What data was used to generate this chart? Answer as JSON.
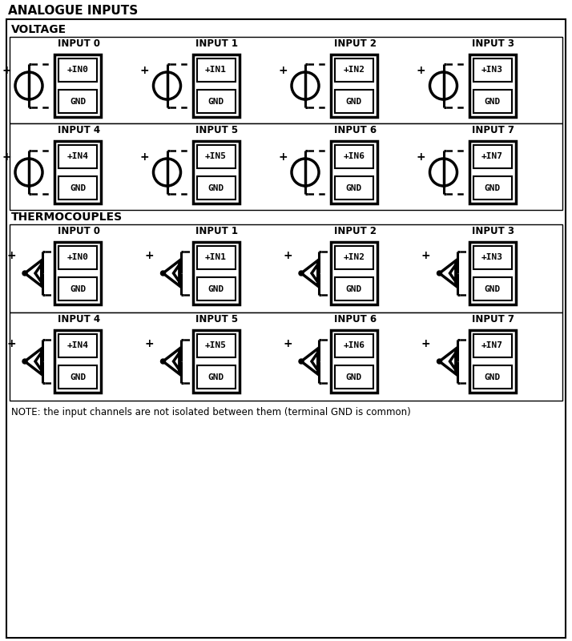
{
  "title": "ANALOGUE INPUTS",
  "voltage_label": "VOLTAGE",
  "thermocouple_label": "THERMOCOUPLES",
  "note": "NOTE: the input channels are not isolated between them (terminal GND is common)",
  "input_labels_row1": [
    "INPUT 0",
    "INPUT 1",
    "INPUT 2",
    "INPUT 3"
  ],
  "input_labels_row2": [
    "INPUT 4",
    "INPUT 5",
    "INPUT 6",
    "INPUT 7"
  ],
  "in_labels_row1": [
    "+IN0",
    "+IN1",
    "+IN2",
    "+IN3"
  ],
  "in_labels_row2": [
    "+IN4",
    "+IN5",
    "+IN6",
    "+IN7"
  ],
  "tc_in_labels_row1": [
    "+IN0",
    "+IN1",
    "+IN2",
    "+IN3"
  ],
  "tc_in_labels_row2": [
    "+IN4",
    "+IN5",
    "+IN6",
    "+IN7"
  ],
  "gnd_label": "GND",
  "plus_label": "+",
  "bg_color": "#ffffff",
  "border_color": "#000000",
  "text_color": "#000000"
}
